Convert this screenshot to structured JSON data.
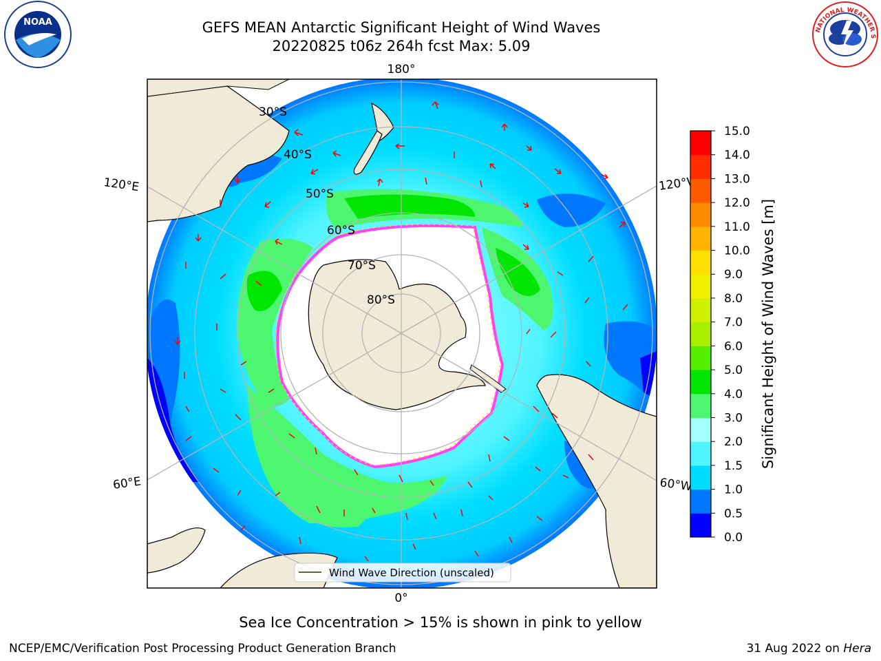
{
  "header": {
    "title_line1": "GEFS MEAN Antarctic Significant Height of Wind Waves",
    "title_line2": "20220825 t06z 264h fcst   Max: 5.09"
  },
  "logos": {
    "left": {
      "icon": "noaa-logo-icon",
      "text": "NOAA",
      "ring_text": "NATIONAL OCEANIC AND ATMOSPHERIC ADMINISTRATION · U.S. DEPARTMENT OF COMMERCE"
    },
    "right": {
      "icon": "nws-logo-icon",
      "ring_text": "NATIONAL WEATHER SERVICE"
    }
  },
  "map": {
    "projection": "south-polar-stereographic",
    "meridian_labels": {
      "top": "180°",
      "bottom": "0°",
      "left_upper": "120°E",
      "left_lower": "60°E",
      "right_upper": "120°W",
      "right_lower": "60°W"
    },
    "parallel_labels": [
      "30°S",
      "40°S",
      "50°S",
      "60°S",
      "70°S",
      "80°S"
    ],
    "legend": {
      "label": "Wind Wave Direction (unscaled)"
    },
    "colors": {
      "land": "#efebd8",
      "ice": "#ffffff",
      "ice_edge_pink": "#ff40ff",
      "ice_edge_yellow": "#ffd030",
      "arrow": "#ff0000",
      "grid": "#b4b4b4"
    }
  },
  "colorbar": {
    "label": "Significant Height of Wind Waves [m]",
    "ticks": [
      "0.0",
      "0.5",
      "1.0",
      "1.5",
      "2.0",
      "3.0",
      "4.0",
      "5.0",
      "6.0",
      "7.0",
      "8.0",
      "9.0",
      "10.0",
      "11.0",
      "12.0",
      "13.0",
      "14.0",
      "15.0"
    ],
    "colors": [
      "#0000ff",
      "#0077ff",
      "#00ddff",
      "#4ff4ff",
      "#a6ffff",
      "#4cf66e",
      "#00e600",
      "#55ee00",
      "#aaee00",
      "#ccf000",
      "#f0f000",
      "#ffe000",
      "#ffb400",
      "#ff8c00",
      "#ff5a00",
      "#ff2d00",
      "#ff0000"
    ]
  },
  "note": "Sea Ice Concentration > 15% is shown in pink to yellow",
  "footer": {
    "left": "NCEP/EMC/Verification Post Processing Product Generation Branch",
    "right_date": "31 Aug 2022 on ",
    "right_host": "Hera"
  }
}
